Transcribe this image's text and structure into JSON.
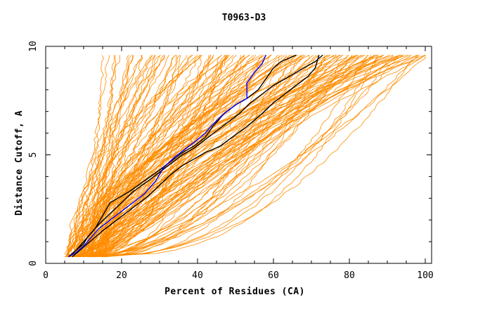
{
  "chart_data": {
    "type": "line",
    "title": "T0963-D3",
    "xlabel": "Percent of Residues (CA)",
    "ylabel": "Distance Cutoff, A",
    "xlim": [
      0,
      100
    ],
    "ylim": [
      0,
      10
    ],
    "x_ticks": [
      "0",
      "20",
      "40",
      "60",
      "80",
      "100"
    ],
    "y_ticks": [
      "0",
      "5",
      "10"
    ],
    "grid": false,
    "legend": "none",
    "colors": {
      "background_models": "#ff8c00",
      "highlight_black": "#000000",
      "highlight_blue": "#0000ff"
    },
    "background_models": {
      "count": 150,
      "x_start_range": [
        5,
        16
      ],
      "x_end_range": [
        16,
        100
      ],
      "y_start": 0.3,
      "y_end": 9.6
    },
    "series": [
      {
        "color": "#000000",
        "points": [
          [
            6,
            0.3
          ],
          [
            8,
            0.6
          ],
          [
            10,
            0.9
          ],
          [
            11,
            1.2
          ],
          [
            13,
            1.6
          ],
          [
            15,
            2.2
          ],
          [
            17,
            2.8
          ],
          [
            19,
            3.0
          ],
          [
            22,
            3.3
          ],
          [
            26,
            3.8
          ],
          [
            30,
            4.3
          ],
          [
            33,
            4.7
          ],
          [
            36,
            5.1
          ],
          [
            39,
            5.4
          ],
          [
            42,
            5.8
          ],
          [
            44,
            6.3
          ],
          [
            47,
            6.9
          ],
          [
            50,
            7.3
          ],
          [
            53,
            7.6
          ],
          [
            56,
            8.0
          ],
          [
            58,
            8.5
          ],
          [
            60,
            9.0
          ],
          [
            62,
            9.3
          ],
          [
            66,
            9.6
          ]
        ]
      },
      {
        "color": "#000000",
        "points": [
          [
            7,
            0.3
          ],
          [
            9,
            0.6
          ],
          [
            11,
            0.9
          ],
          [
            13,
            1.2
          ],
          [
            15,
            1.5
          ],
          [
            18,
            1.9
          ],
          [
            21,
            2.3
          ],
          [
            24,
            2.7
          ],
          [
            27,
            3.1
          ],
          [
            30,
            3.6
          ],
          [
            33,
            4.1
          ],
          [
            36,
            4.5
          ],
          [
            39,
            4.8
          ],
          [
            42,
            5.1
          ],
          [
            46,
            5.4
          ],
          [
            49,
            5.8
          ],
          [
            53,
            6.3
          ],
          [
            57,
            6.9
          ],
          [
            60,
            7.4
          ],
          [
            63,
            7.8
          ],
          [
            66,
            8.2
          ],
          [
            69,
            8.6
          ],
          [
            71,
            9.0
          ],
          [
            72,
            9.6
          ]
        ]
      },
      {
        "color": "#000000",
        "points": [
          [
            6,
            0.3
          ],
          [
            8,
            0.6
          ],
          [
            10,
            1.0
          ],
          [
            12,
            1.4
          ],
          [
            14,
            1.8
          ],
          [
            17,
            2.3
          ],
          [
            20,
            2.8
          ],
          [
            23,
            3.3
          ],
          [
            27,
            3.8
          ],
          [
            30,
            4.2
          ],
          [
            33,
            4.6
          ],
          [
            36,
            5.0
          ],
          [
            39,
            5.3
          ],
          [
            42,
            5.7
          ],
          [
            45,
            6.1
          ],
          [
            48,
            6.5
          ],
          [
            51,
            6.9
          ],
          [
            54,
            7.4
          ],
          [
            57,
            7.8
          ],
          [
            60,
            8.2
          ],
          [
            63,
            8.5
          ],
          [
            66,
            8.8
          ],
          [
            69,
            9.1
          ],
          [
            71,
            9.3
          ],
          [
            73,
            9.6
          ]
        ]
      },
      {
        "color": "#0000ff",
        "points": [
          [
            6,
            0.3
          ],
          [
            8,
            0.5
          ],
          [
            10,
            0.8
          ],
          [
            12,
            1.2
          ],
          [
            14,
            1.6
          ],
          [
            17,
            2.0
          ],
          [
            20,
            2.4
          ],
          [
            23,
            2.8
          ],
          [
            26,
            3.2
          ],
          [
            29,
            3.8
          ],
          [
            31,
            4.4
          ],
          [
            34,
            4.9
          ],
          [
            37,
            5.3
          ],
          [
            40,
            5.7
          ],
          [
            42,
            6.0
          ],
          [
            44,
            6.4
          ],
          [
            47,
            6.9
          ],
          [
            50,
            7.3
          ],
          [
            53,
            7.6
          ],
          [
            53,
            8.3
          ],
          [
            55,
            8.8
          ],
          [
            57,
            9.2
          ],
          [
            58,
            9.6
          ]
        ]
      }
    ]
  }
}
